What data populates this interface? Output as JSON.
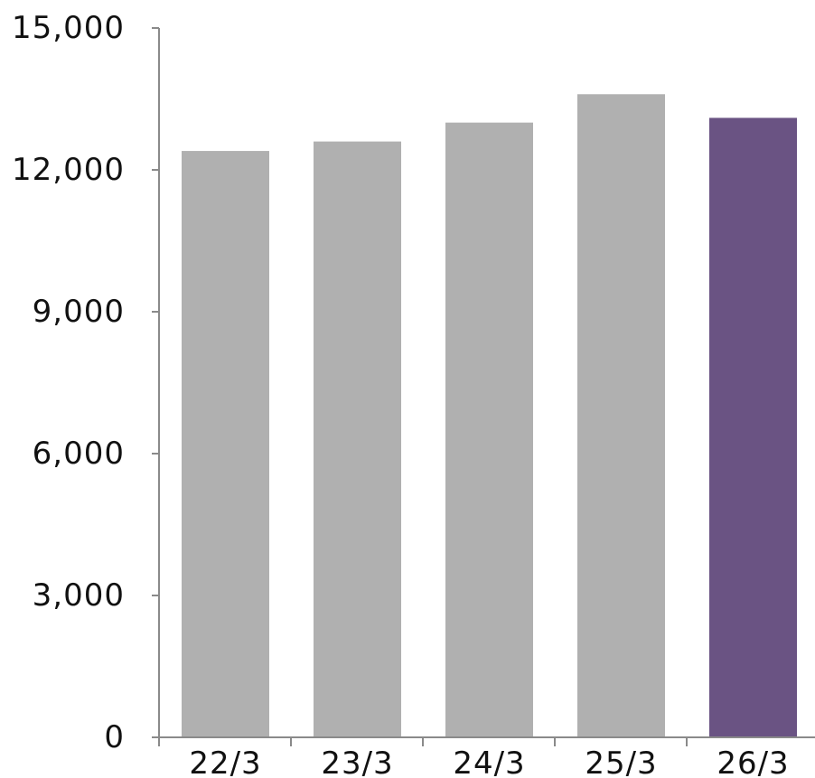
{
  "chart_data": {
    "type": "bar",
    "categories": [
      "22/3",
      "23/3",
      "24/3",
      "25/3",
      "26/3"
    ],
    "values": [
      12400,
      12600,
      13000,
      13600,
      13100
    ],
    "ylim": [
      0,
      15000
    ],
    "yticks": [
      0,
      3000,
      6000,
      9000,
      12000,
      15000
    ],
    "ytick_labels": [
      "0",
      "3,000",
      "6,000",
      "9,000",
      "12,000",
      "15,000"
    ],
    "grid": false,
    "colors": {
      "default_bar": "#b0b0b0",
      "highlight_bar": "#6a5383",
      "axis": "#8a8a8a",
      "text": "#111111"
    },
    "highlight_category": "26/3"
  }
}
